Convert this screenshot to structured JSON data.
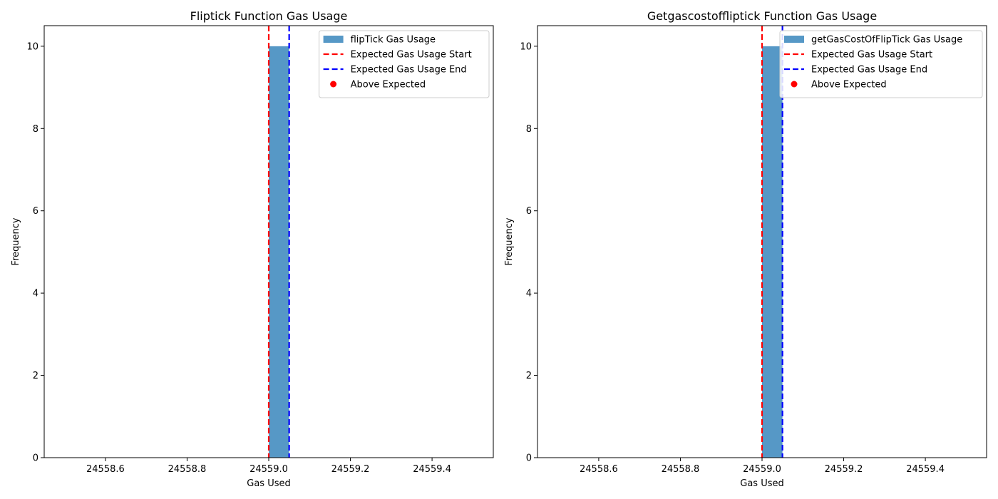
{
  "chart_data": [
    {
      "type": "bar",
      "title": "Fliptick Function Gas Usage",
      "xlabel": "Gas Used",
      "ylabel": "Frequency",
      "xlim": [
        24558.45,
        24559.55
      ],
      "ylim": [
        0,
        10.5
      ],
      "xticks": [
        24558.6,
        24558.8,
        24559.0,
        24559.2,
        24559.4
      ],
      "xtick_labels": [
        "24558.6",
        "24558.8",
        "24559.0",
        "24559.2",
        "24559.4"
      ],
      "yticks": [
        0,
        2,
        4,
        6,
        8,
        10
      ],
      "ytick_labels": [
        "0",
        "2",
        "4",
        "6",
        "8",
        "10"
      ],
      "bins": [
        {
          "start": 24559.0,
          "end": 24559.05,
          "count": 10
        }
      ],
      "bar_color": "#5698c6",
      "expected_start": 24559.0,
      "expected_end": 24559.05,
      "start_color": "#ff0000",
      "end_color": "#0000ff",
      "grid": false,
      "legend_position": "top-right",
      "legend": [
        {
          "label": "flipTick Gas Usage",
          "kind": "bar",
          "color": "#5698c6"
        },
        {
          "label": "Expected Gas Usage Start",
          "kind": "dashed-line",
          "color": "#ff0000"
        },
        {
          "label": "Expected Gas Usage End",
          "kind": "dashed-line",
          "color": "#0000ff"
        },
        {
          "label": "Above Expected",
          "kind": "dot",
          "color": "#ff0000"
        }
      ]
    },
    {
      "type": "bar",
      "title": "Getgascostoffliptick Function Gas Usage",
      "xlabel": "Gas Used",
      "ylabel": "Frequency",
      "xlim": [
        24558.45,
        24559.55
      ],
      "ylim": [
        0,
        10.5
      ],
      "xticks": [
        24558.6,
        24558.8,
        24559.0,
        24559.2,
        24559.4
      ],
      "xtick_labels": [
        "24558.6",
        "24558.8",
        "24559.0",
        "24559.2",
        "24559.4"
      ],
      "yticks": [
        0,
        2,
        4,
        6,
        8,
        10
      ],
      "ytick_labels": [
        "0",
        "2",
        "4",
        "6",
        "8",
        "10"
      ],
      "bins": [
        {
          "start": 24559.0,
          "end": 24559.05,
          "count": 10
        }
      ],
      "bar_color": "#5698c6",
      "expected_start": 24559.0,
      "expected_end": 24559.05,
      "start_color": "#ff0000",
      "end_color": "#0000ff",
      "grid": false,
      "legend_position": "top-right",
      "legend": [
        {
          "label": "getGasCostOfFlipTick Gas Usage",
          "kind": "bar",
          "color": "#5698c6"
        },
        {
          "label": "Expected Gas Usage Start",
          "kind": "dashed-line",
          "color": "#ff0000"
        },
        {
          "label": "Expected Gas Usage End",
          "kind": "dashed-line",
          "color": "#0000ff"
        },
        {
          "label": "Above Expected",
          "kind": "dot",
          "color": "#ff0000"
        }
      ]
    }
  ]
}
